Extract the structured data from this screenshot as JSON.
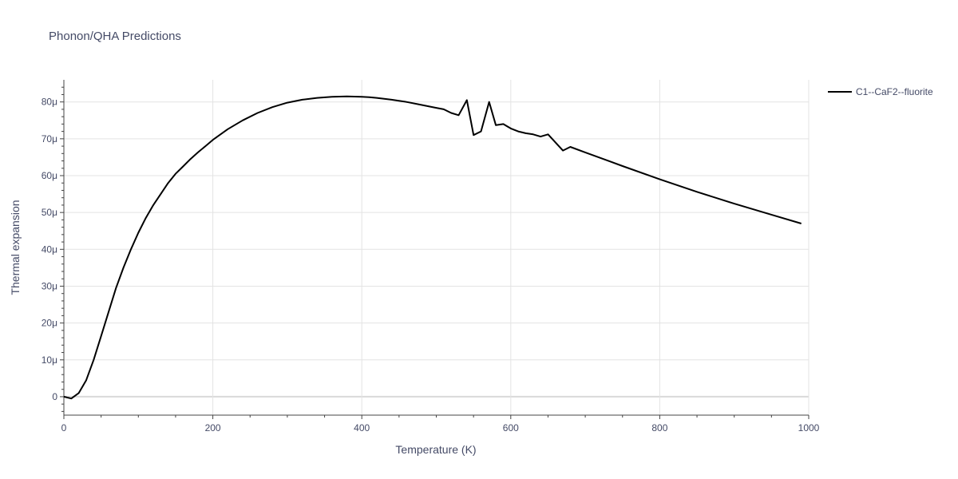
{
  "chart_data": {
    "type": "line",
    "title": "Phonon/QHA Predictions",
    "xlabel": "Temperature (K)",
    "ylabel": "Thermal expansion",
    "xlim": [
      0,
      1000
    ],
    "ylim": [
      -5,
      86
    ],
    "x_ticks": [
      0,
      200,
      400,
      600,
      800,
      1000
    ],
    "x_tick_labels": [
      "0",
      "200",
      "400",
      "600",
      "800",
      "1000"
    ],
    "y_ticks": [
      0,
      10,
      20,
      30,
      40,
      50,
      60,
      70,
      80
    ],
    "y_tick_labels": [
      "0",
      "10μ",
      "20μ",
      "30μ",
      "40μ",
      "50μ",
      "60μ",
      "70μ",
      "80μ"
    ],
    "y_unit_note": "y values in units of 1e-6 (μ)",
    "grid": true,
    "legend_position": "top-right",
    "series": [
      {
        "name": "C1--CaF2--fluorite",
        "color": "#000000",
        "x": [
          0,
          10,
          20,
          30,
          40,
          50,
          60,
          70,
          80,
          90,
          100,
          110,
          120,
          130,
          140,
          150,
          160,
          170,
          180,
          190,
          200,
          220,
          240,
          260,
          280,
          300,
          320,
          340,
          360,
          380,
          400,
          410,
          420,
          440,
          460,
          480,
          500,
          510,
          520,
          530,
          541,
          550,
          560,
          571,
          580,
          590,
          600,
          610,
          620,
          630,
          640,
          650,
          670,
          680,
          700,
          750,
          800,
          850,
          900,
          950,
          990
        ],
        "y": [
          0,
          -0.5,
          1,
          4.5,
          10,
          16.5,
          23,
          29.5,
          35,
          40,
          44.5,
          48.5,
          52,
          55,
          58,
          60.5,
          62.5,
          64.5,
          66.3,
          68,
          69.7,
          72.6,
          75.0,
          77.0,
          78.6,
          79.8,
          80.6,
          81.1,
          81.4,
          81.5,
          81.4,
          81.3,
          81.1,
          80.6,
          80.0,
          79.2,
          78.4,
          78.0,
          77.0,
          76.4,
          80.5,
          71.0,
          72.0,
          80.0,
          73.7,
          74.0,
          72.8,
          72.0,
          71.5,
          71.2,
          70.6,
          71.2,
          66.8,
          67.8,
          66.3,
          62.6,
          59.0,
          55.6,
          52.4,
          49.4,
          47.0
        ]
      }
    ]
  }
}
